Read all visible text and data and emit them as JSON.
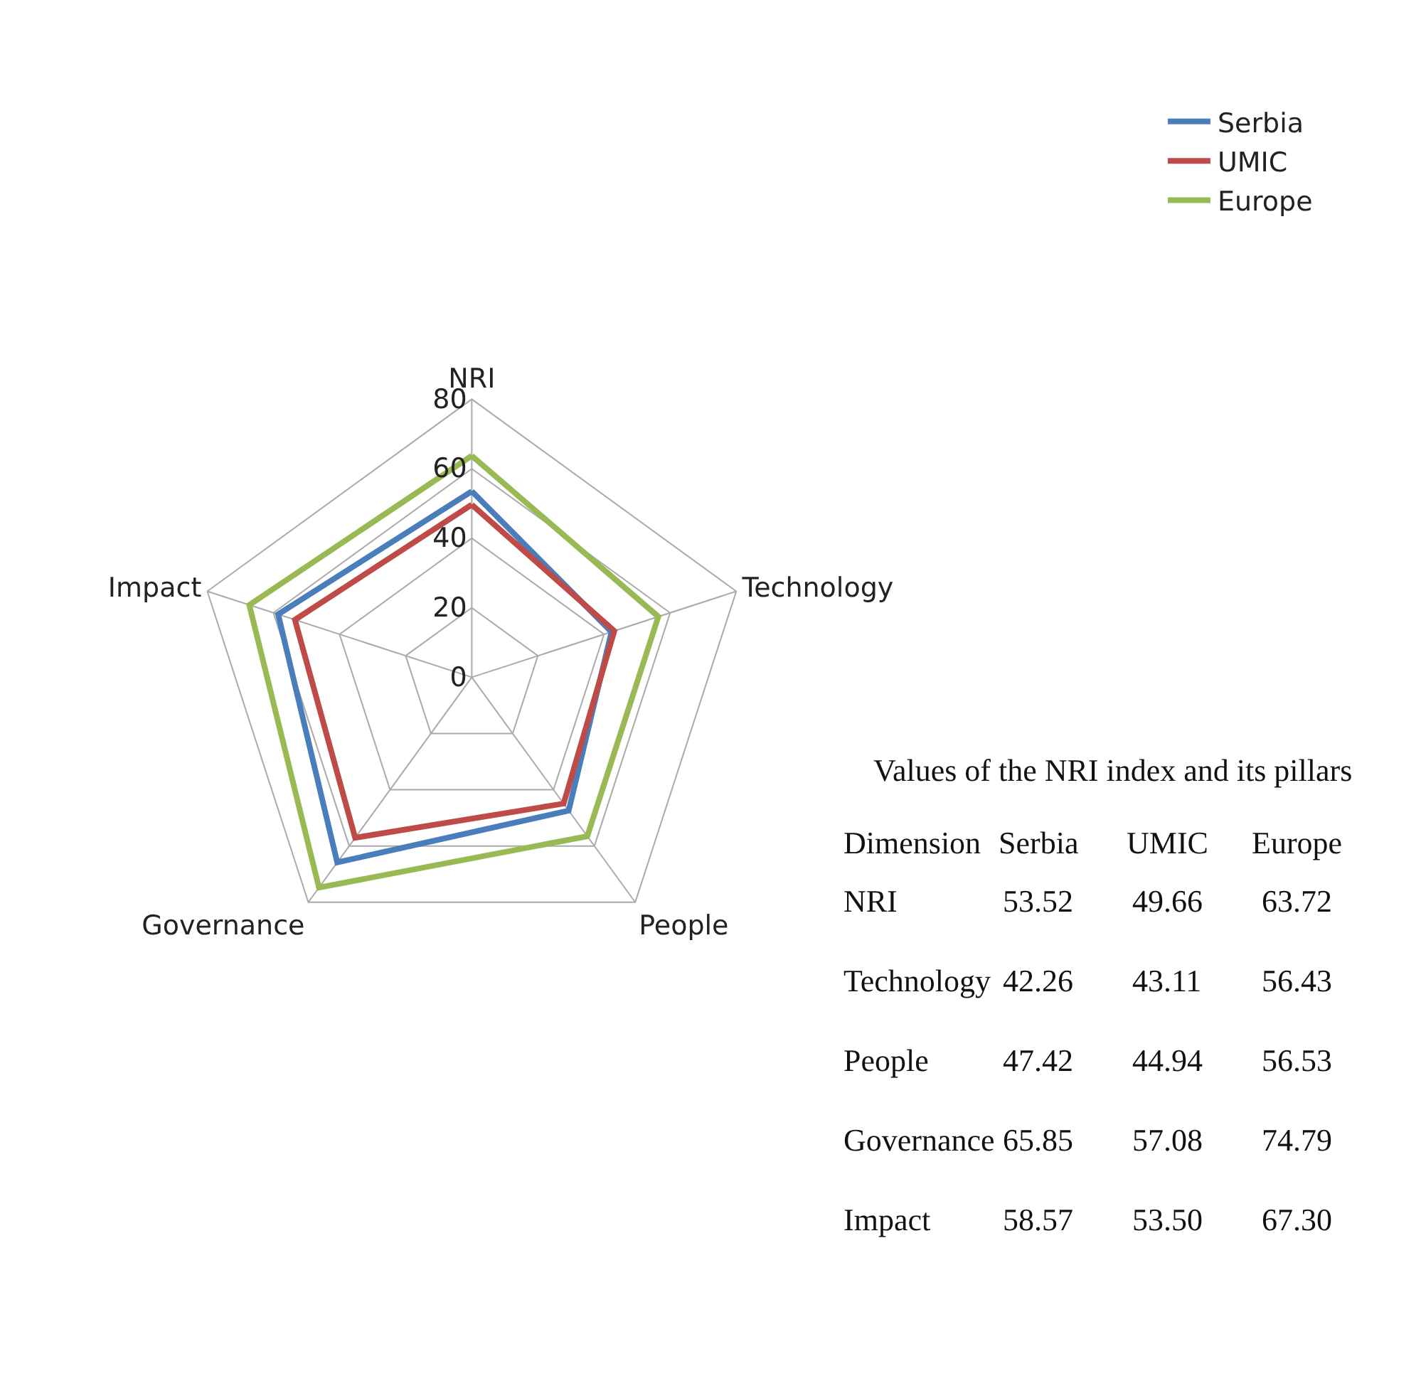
{
  "chart_data": [
    {
      "type": "radar",
      "categories": [
        "NRI",
        "Technology",
        "People",
        "Governance",
        "Impact"
      ],
      "series": [
        {
          "name": "Serbia",
          "color": "#4a7ebb",
          "values": [
            53.52,
            42.26,
            47.42,
            65.85,
            58.57
          ]
        },
        {
          "name": "UMIC",
          "color": "#be4b48",
          "values": [
            49.66,
            43.11,
            44.94,
            57.08,
            53.5
          ]
        },
        {
          "name": "Europe",
          "color": "#98b954",
          "values": [
            63.72,
            56.43,
            56.53,
            74.79,
            67.3
          ]
        }
      ],
      "ylim": [
        0,
        80
      ],
      "yticks": [
        0,
        20,
        40,
        60,
        80
      ],
      "grid": true,
      "legend": "top right",
      "marker": "none",
      "line_style": "solid"
    },
    {
      "type": "other",
      "title": "Values of the NRI index and its pillars",
      "annotations": [
        "Dimension",
        "Serbia",
        "UMIC",
        "Europe",
        "NRI",
        "53.52",
        "49.66",
        "63.72",
        "Technology",
        "42.26",
        "43.11",
        "56.43",
        "People",
        "47.42",
        "44.94",
        "56.53",
        "Governance",
        "65.85",
        "57.08",
        "74.79",
        "Impact",
        "58.57",
        "53.50",
        "67.30"
      ]
    }
  ]
}
